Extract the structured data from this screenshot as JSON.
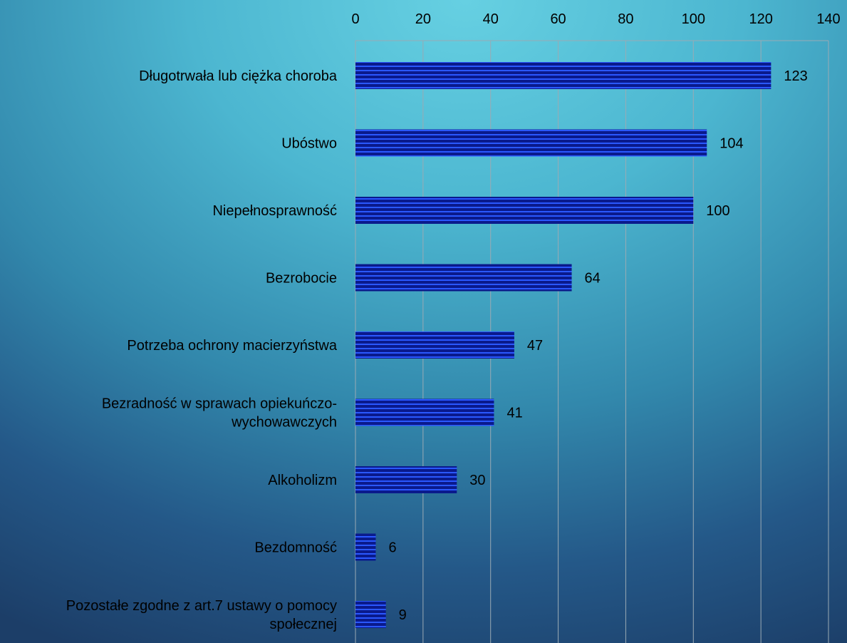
{
  "chart_data": {
    "type": "bar",
    "orientation": "horizontal",
    "categories": [
      "Długotrwała lub ciężka choroba",
      "Ubóstwo",
      "Niepełnosprawność",
      "Bezrobocie",
      "Potrzeba ochrony macierzyństwa",
      "Bezradność w sprawach opiekuńczo-wychowawczych",
      "Alkoholizm",
      "Bezdomność",
      "Pozostałe zgodne z art.7 ustawy o pomocy społecznej"
    ],
    "category_lines": [
      [
        "Długotrwała lub ciężka choroba"
      ],
      [
        "Ubóstwo"
      ],
      [
        "Niepełnosprawność"
      ],
      [
        "Bezrobocie"
      ],
      [
        "Potrzeba ochrony macierzyństwa"
      ],
      [
        "Bezradność w sprawach opiekuńczo-",
        "wychowawczych"
      ],
      [
        "Alkoholizm"
      ],
      [
        "Bezdomność"
      ],
      [
        "Pozostałe zgodne z art.7 ustawy o pomocy",
        "społecznej"
      ]
    ],
    "values": [
      123,
      104,
      100,
      64,
      47,
      41,
      30,
      6,
      9
    ],
    "data_labels": [
      "123",
      "104",
      "100",
      "64",
      "47",
      "41",
      "30",
      "6",
      "9"
    ],
    "xlim": [
      0,
      140
    ],
    "x_ticks": [
      0,
      20,
      40,
      60,
      80,
      100,
      120,
      140
    ],
    "x_tick_labels": [
      "0",
      "20",
      "40",
      "60",
      "80",
      "100",
      "120",
      "140"
    ],
    "x_axis_position": "top",
    "grid": true,
    "legend": "none",
    "colors": {
      "bar_dark": "#0a1a8c",
      "bar_light": "#2a58ff",
      "grid": "#9aaab4",
      "text": "#000000"
    }
  }
}
